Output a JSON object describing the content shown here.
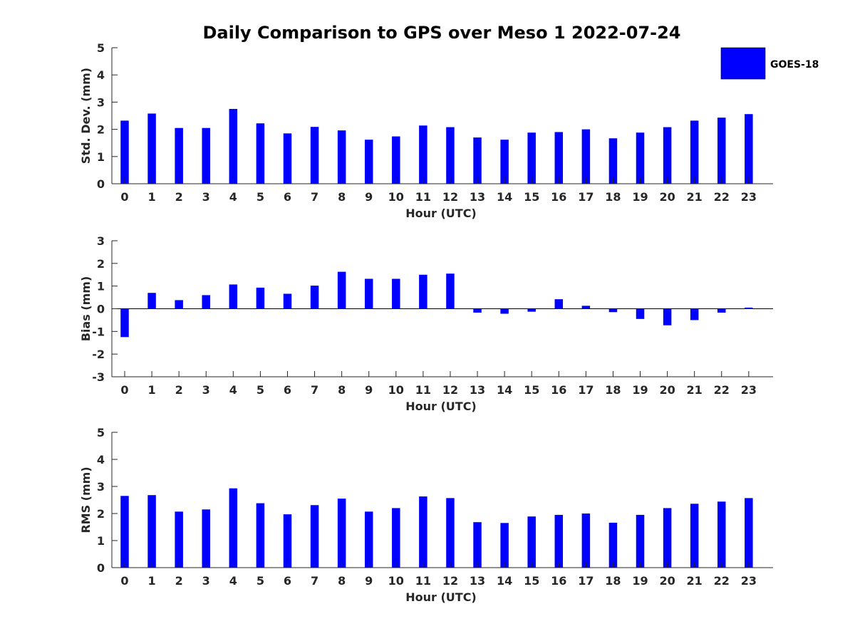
{
  "title": "Daily Comparison to GPS over Meso 1 2022-07-24",
  "legend": {
    "label": "GOES-18",
    "color": "#0000ff",
    "placement": "top-right"
  },
  "chart_data": [
    {
      "type": "bar",
      "xlabel": "Hour (UTC)",
      "ylabel": "Std. Dev. (mm)",
      "ylim": [
        0,
        5
      ],
      "yticks": [
        0,
        1,
        2,
        3,
        4,
        5
      ],
      "categories": [
        "0",
        "1",
        "2",
        "3",
        "4",
        "5",
        "6",
        "7",
        "8",
        "9",
        "10",
        "11",
        "12",
        "13",
        "14",
        "15",
        "16",
        "17",
        "18",
        "19",
        "20",
        "21",
        "22",
        "23"
      ],
      "series": [
        {
          "name": "GOES-18",
          "color": "#0000ff",
          "values": [
            2.32,
            2.58,
            2.05,
            2.05,
            2.75,
            2.22,
            1.85,
            2.09,
            1.96,
            1.62,
            1.74,
            2.14,
            2.08,
            1.7,
            1.62,
            1.88,
            1.9,
            2.0,
            1.67,
            1.88,
            2.08,
            2.32,
            2.43,
            2.56
          ]
        }
      ]
    },
    {
      "type": "bar",
      "xlabel": "Hour (UTC)",
      "ylabel": "Bias (mm)",
      "ylim": [
        -3,
        3
      ],
      "yticks": [
        -3,
        -2,
        -1,
        0,
        1,
        2,
        3
      ],
      "zero_line": true,
      "categories": [
        "0",
        "1",
        "2",
        "3",
        "4",
        "5",
        "6",
        "7",
        "8",
        "9",
        "10",
        "11",
        "12",
        "13",
        "14",
        "15",
        "16",
        "17",
        "18",
        "19",
        "20",
        "21",
        "22",
        "23"
      ],
      "series": [
        {
          "name": "GOES-18",
          "color": "#0000ff",
          "values": [
            -1.25,
            0.7,
            0.38,
            0.6,
            1.07,
            0.93,
            0.66,
            1.02,
            1.63,
            1.32,
            1.32,
            1.5,
            1.55,
            -0.17,
            -0.22,
            -0.13,
            0.42,
            0.13,
            -0.15,
            -0.45,
            -0.73,
            -0.5,
            -0.17,
            0.05
          ]
        }
      ]
    },
    {
      "type": "bar",
      "xlabel": "Hour (UTC)",
      "ylabel": "RMS (mm)",
      "ylim": [
        0,
        5
      ],
      "yticks": [
        0,
        1,
        2,
        3,
        4,
        5
      ],
      "categories": [
        "0",
        "1",
        "2",
        "3",
        "4",
        "5",
        "6",
        "7",
        "8",
        "9",
        "10",
        "11",
        "12",
        "13",
        "14",
        "15",
        "16",
        "17",
        "18",
        "19",
        "20",
        "21",
        "22",
        "23"
      ],
      "series": [
        {
          "name": "GOES-18",
          "color": "#0000ff",
          "values": [
            2.65,
            2.68,
            2.07,
            2.15,
            2.93,
            2.38,
            1.97,
            2.31,
            2.55,
            2.07,
            2.2,
            2.63,
            2.57,
            1.68,
            1.65,
            1.89,
            1.95,
            2.0,
            1.66,
            1.95,
            2.2,
            2.36,
            2.44,
            2.57
          ]
        }
      ]
    }
  ]
}
